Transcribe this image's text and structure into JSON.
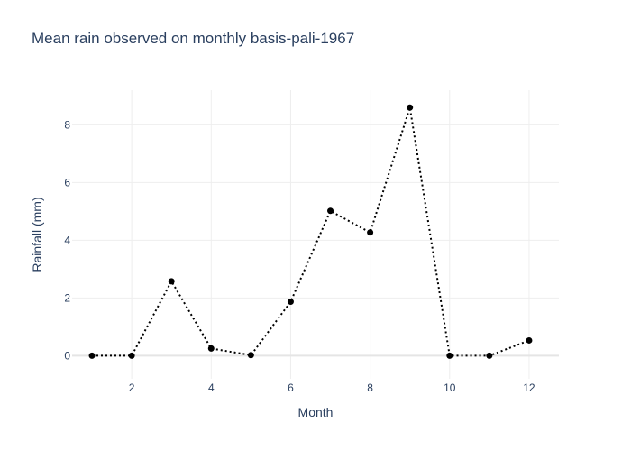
{
  "chart_data": {
    "type": "line",
    "title": "Mean rain observed on monthly basis-pali-1967",
    "xlabel": "Month",
    "ylabel": "Rainfall (mm)",
    "x": [
      1,
      2,
      3,
      4,
      5,
      6,
      7,
      8,
      9,
      10,
      11,
      12
    ],
    "y": [
      0,
      0,
      2.58,
      0.25,
      0.02,
      1.87,
      5.02,
      4.27,
      8.6,
      0,
      0,
      0.53
    ],
    "xlim": [
      0.5,
      12.75
    ],
    "ylim": [
      -0.8,
      9.2
    ],
    "x_ticks": [
      2,
      4,
      6,
      8,
      10,
      12
    ],
    "y_ticks": [
      0,
      2,
      4,
      6,
      8
    ],
    "grid": true,
    "line_style": "dotted",
    "marker": "circle",
    "colors": {
      "line": "#000000",
      "marker": "#000000",
      "grid": "#eeeeee",
      "zeroline": "#e5e5e5",
      "text": "#2a3f5f"
    }
  }
}
